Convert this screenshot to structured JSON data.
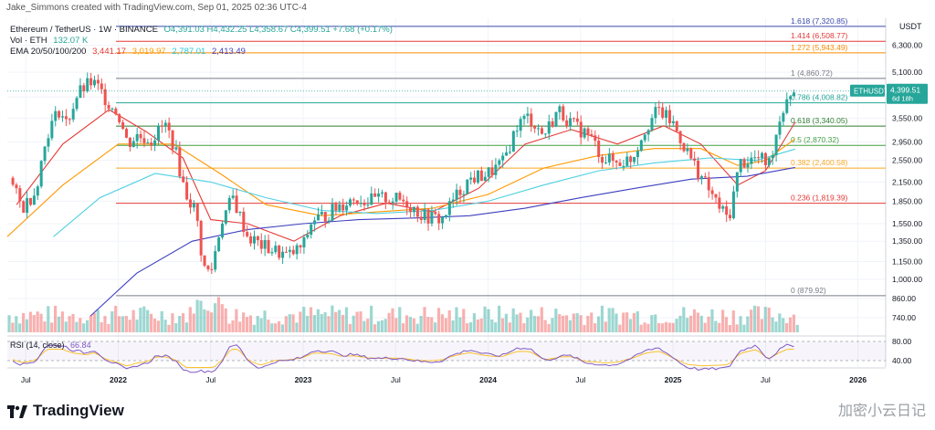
{
  "header": {
    "created_by": "Jake_Simmons created with TradingView.com, Sep 01, 2025 02:36 UTC-4"
  },
  "legend": {
    "symbol": "Ethereum / TetherUS · 1W · BINANCE",
    "ohlc": "O4,391.03 H4,432.25 L4,358.67 C4,399.51 +7.68 (+0.17%)",
    "vol_label": "Vol · ETH",
    "vol_value": "132.07 K",
    "ema_label": "EMA 20/50/100/200",
    "ema20": "3,441.17",
    "ema50": "3,019.97",
    "ema100": "2,787.01",
    "ema200": "2,413.49",
    "rsi_label": "RSI (14, close)",
    "rsi_value": "66.84"
  },
  "price_tag": {
    "symbol": "ETHUSDT",
    "price": "4,399.51",
    "countdown": "6d 18h"
  },
  "axis_unit": "USDT",
  "footer": {
    "brand": "TradingView",
    "watermark": "加密小云日记"
  },
  "colors": {
    "up": "#26a69a",
    "down": "#ef5350",
    "ema20": "#e53935",
    "ema50": "#ff9800",
    "ema100": "#4dd0e1",
    "ema200": "#3f3fbf",
    "rsi": "#7e57c2",
    "rsi_ma": "#fbc02d"
  },
  "chart_data": {
    "type": "candlestick",
    "y_scale": "log",
    "ylim": [
      650,
      7800
    ],
    "y_ticks": [
      6300,
      5100,
      4200,
      3550,
      2950,
      2550,
      2150,
      1850,
      1550,
      1350,
      1150,
      1000,
      860,
      740
    ],
    "y_tick_labels": [
      "6,300.00",
      "5,100.00",
      "4,200.00",
      "3,550.00",
      "2,950.00",
      "2,550.00",
      "2,150.00",
      "1,850.00",
      "1,550.00",
      "1,350.00",
      "1,150.00",
      "1,000.00",
      "860.00",
      "740.00"
    ],
    "x_tick_labels": [
      "Jul",
      "2022",
      "Jul",
      "2023",
      "Jul",
      "2024",
      "Jul",
      "2025",
      "Jul",
      "2026"
    ],
    "fib_levels": [
      {
        "label": "1.618 (7,320.85)",
        "value": 7320.85,
        "color": "#3949ab"
      },
      {
        "label": "1.414 (6,508.77)",
        "value": 6508.77,
        "color": "#e53935"
      },
      {
        "label": "1.272 (5,943.49)",
        "value": 5943.49,
        "color": "#fb8c00"
      },
      {
        "label": "1 (4,860.72)",
        "value": 4860.72,
        "color": "#787b86"
      },
      {
        "label": "0.786 (4,008.82)",
        "value": 4008.82,
        "color": "#26a69a"
      },
      {
        "label": "0.618 (3,340.05)",
        "value": 3340.05,
        "color": "#2e7d32"
      },
      {
        "label": "0.5 (2,870.32)",
        "value": 2870.32,
        "color": "#43a047"
      },
      {
        "label": "0.382 (2,400.58)",
        "value": 2400.58,
        "color": "#f9a825"
      },
      {
        "label": "0.236 (1,819.39)",
        "value": 1819.39,
        "color": "#e53935"
      },
      {
        "label": "0 (879.92)",
        "value": 879.92,
        "color": "#787b86"
      }
    ],
    "rsi_ticks": [
      "80.00",
      "40.00"
    ],
    "price_path": [
      [
        2021.4,
        2300
      ],
      [
        2021.48,
        1750
      ],
      [
        2021.55,
        2000
      ],
      [
        2021.62,
        3200
      ],
      [
        2021.68,
        3800
      ],
      [
        2021.72,
        3400
      ],
      [
        2021.78,
        4300
      ],
      [
        2021.85,
        4700
      ],
      [
        2021.88,
        4600
      ],
      [
        2021.95,
        4000
      ],
      [
        2022.0,
        3700
      ],
      [
        2022.05,
        2900
      ],
      [
        2022.1,
        3100
      ],
      [
        2022.18,
        3000
      ],
      [
        2022.25,
        3400
      ],
      [
        2022.3,
        2900
      ],
      [
        2022.36,
        2000
      ],
      [
        2022.42,
        1700
      ],
      [
        2022.46,
        1100
      ],
      [
        2022.5,
        1050
      ],
      [
        2022.56,
        1600
      ],
      [
        2022.62,
        1900
      ],
      [
        2022.7,
        1400
      ],
      [
        2022.78,
        1300
      ],
      [
        2022.85,
        1250
      ],
      [
        2022.92,
        1200
      ],
      [
        2023.0,
        1300
      ],
      [
        2023.05,
        1600
      ],
      [
        2023.12,
        1650
      ],
      [
        2023.2,
        1800
      ],
      [
        2023.28,
        1900
      ],
      [
        2023.35,
        1850
      ],
      [
        2023.45,
        1900
      ],
      [
        2023.55,
        1850
      ],
      [
        2023.65,
        1650
      ],
      [
        2023.75,
        1600
      ],
      [
        2023.82,
        1900
      ],
      [
        2023.9,
        2200
      ],
      [
        2024.0,
        2300
      ],
      [
        2024.08,
        2500
      ],
      [
        2024.16,
        3400
      ],
      [
        2024.22,
        3600
      ],
      [
        2024.3,
        3100
      ],
      [
        2024.38,
        3800
      ],
      [
        2024.45,
        3400
      ],
      [
        2024.55,
        3100
      ],
      [
        2024.62,
        2600
      ],
      [
        2024.7,
        2500
      ],
      [
        2024.78,
        2600
      ],
      [
        2024.85,
        3300
      ],
      [
        2024.92,
        3800
      ],
      [
        2025.0,
        3400
      ],
      [
        2025.08,
        2700
      ],
      [
        2025.16,
        2200
      ],
      [
        2025.24,
        1800
      ],
      [
        2025.3,
        1600
      ],
      [
        2025.36,
        2500
      ],
      [
        2025.45,
        2600
      ],
      [
        2025.52,
        2500
      ],
      [
        2025.58,
        3600
      ],
      [
        2025.62,
        4300
      ],
      [
        2025.66,
        4400
      ]
    ],
    "ema_paths": {
      "ema20": [
        [
          2021.45,
          1800
        ],
        [
          2021.7,
          2900
        ],
        [
          2021.95,
          3800
        ],
        [
          2022.15,
          3200
        ],
        [
          2022.35,
          2600
        ],
        [
          2022.5,
          1600
        ],
        [
          2022.7,
          1550
        ],
        [
          2022.95,
          1350
        ],
        [
          2023.2,
          1650
        ],
        [
          2023.45,
          1820
        ],
        [
          2023.7,
          1700
        ],
        [
          2023.95,
          2050
        ],
        [
          2024.2,
          2900
        ],
        [
          2024.45,
          3250
        ],
        [
          2024.7,
          2900
        ],
        [
          2024.95,
          3350
        ],
        [
          2025.15,
          2900
        ],
        [
          2025.35,
          2100
        ],
        [
          2025.5,
          2350
        ],
        [
          2025.66,
          3441
        ]
      ],
      "ema50": [
        [
          2021.4,
          1400
        ],
        [
          2021.7,
          2100
        ],
        [
          2022.0,
          2900
        ],
        [
          2022.3,
          2900
        ],
        [
          2022.55,
          2300
        ],
        [
          2022.8,
          1800
        ],
        [
          2023.1,
          1650
        ],
        [
          2023.4,
          1700
        ],
        [
          2023.7,
          1750
        ],
        [
          2024.0,
          1950
        ],
        [
          2024.3,
          2400
        ],
        [
          2024.6,
          2650
        ],
        [
          2024.9,
          2800
        ],
        [
          2025.15,
          2800
        ],
        [
          2025.35,
          2450
        ],
        [
          2025.5,
          2550
        ],
        [
          2025.66,
          3020
        ]
      ],
      "ema100": [
        [
          2021.65,
          1400
        ],
        [
          2021.9,
          1900
        ],
        [
          2022.2,
          2300
        ],
        [
          2022.5,
          2150
        ],
        [
          2022.8,
          1900
        ],
        [
          2023.1,
          1720
        ],
        [
          2023.4,
          1680
        ],
        [
          2023.7,
          1720
        ],
        [
          2024.0,
          1850
        ],
        [
          2024.3,
          2100
        ],
        [
          2024.6,
          2350
        ],
        [
          2024.9,
          2500
        ],
        [
          2025.2,
          2600
        ],
        [
          2025.45,
          2550
        ],
        [
          2025.66,
          2787
        ]
      ],
      "ema200": [
        [
          2021.85,
          750
        ],
        [
          2022.1,
          1050
        ],
        [
          2022.4,
          1350
        ],
        [
          2022.7,
          1480
        ],
        [
          2023.0,
          1550
        ],
        [
          2023.3,
          1600
        ],
        [
          2023.6,
          1620
        ],
        [
          2023.9,
          1650
        ],
        [
          2024.2,
          1750
        ],
        [
          2024.5,
          1900
        ],
        [
          2024.8,
          2050
        ],
        [
          2025.1,
          2200
        ],
        [
          2025.4,
          2250
        ],
        [
          2025.66,
          2413
        ]
      ]
    },
    "x_domain": [
      2021.4,
      2026.15
    ]
  }
}
